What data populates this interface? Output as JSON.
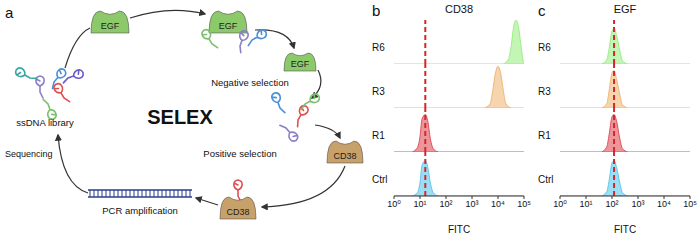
{
  "panel_a": {
    "label": "a",
    "title": "SELEX",
    "negative_target": "EGF",
    "positive_target": "CD38",
    "steps": {
      "library": "ssDNA library",
      "negative": "Negative selection",
      "positive": "Positive selection",
      "pcr": "PCR amplification",
      "sequencing": "Sequencing"
    }
  },
  "chart_data": [
    {
      "label": "b",
      "type": "area",
      "title": "CD38",
      "x_label": "FITC",
      "log": "x",
      "xlim": [
        1,
        100000
      ],
      "xticks": [
        {
          "value": 1,
          "label": "10⁰"
        },
        {
          "value": 10,
          "label": "10¹"
        },
        {
          "value": 100,
          "label": "10²"
        },
        {
          "value": 1000,
          "label": "10³"
        },
        {
          "value": 10000,
          "label": "10⁴"
        },
        {
          "value": 100000,
          "label": "10⁵"
        }
      ],
      "ylim": [
        0,
        1
      ],
      "tick_labels": "x",
      "reference_line": 16,
      "series": [
        {
          "name": "R6",
          "color": "#9bee84",
          "x": [
            16000,
            25000,
            32000,
            40000,
            50000,
            63000,
            79000,
            90000,
            100000
          ],
          "values": [
            0,
            0.1,
            0.4,
            0.85,
            1,
            0.8,
            0.35,
            0.12,
            0.02
          ]
        },
        {
          "name": "R3",
          "color": "#f0b878",
          "x": [
            3000,
            5000,
            6300,
            8000,
            10000,
            12600,
            16000,
            20000,
            32000
          ],
          "values": [
            0,
            0.1,
            0.4,
            0.8,
            0.95,
            0.8,
            0.4,
            0.1,
            0
          ]
        },
        {
          "name": "R1",
          "color": "#e0505a",
          "x": [
            5,
            8,
            10,
            12,
            16,
            20,
            25,
            32,
            50
          ],
          "values": [
            0,
            0.1,
            0.35,
            0.75,
            0.85,
            0.7,
            0.3,
            0.08,
            0
          ]
        },
        {
          "name": "Ctrl",
          "color": "#5ec8ef",
          "x": [
            5,
            8,
            10,
            12,
            16,
            20,
            25,
            32,
            50
          ],
          "values": [
            0,
            0.08,
            0.3,
            0.7,
            0.8,
            0.65,
            0.3,
            0.08,
            0
          ]
        }
      ]
    },
    {
      "label": "c",
      "type": "area",
      "title": "EGF",
      "x_label": "FITC",
      "log": "x",
      "xlim": [
        1,
        100000
      ],
      "xticks": [
        {
          "value": 1,
          "label": "10⁰"
        },
        {
          "value": 10,
          "label": "10¹"
        },
        {
          "value": 100,
          "label": "10²"
        },
        {
          "value": 1000,
          "label": "10³"
        },
        {
          "value": 10000,
          "label": "10⁴"
        },
        {
          "value": 100000,
          "label": "10⁵"
        }
      ],
      "ylim": [
        0,
        1
      ],
      "tick_labels": "x",
      "reference_line": 120,
      "series": [
        {
          "name": "R6",
          "color": "#9bee84",
          "x": [
            40,
            63,
            80,
            100,
            120,
            150,
            200,
            250,
            400
          ],
          "values": [
            0,
            0.1,
            0.4,
            0.75,
            0.8,
            0.65,
            0.3,
            0.08,
            0
          ]
        },
        {
          "name": "R3",
          "color": "#f0b878",
          "x": [
            40,
            63,
            80,
            100,
            120,
            150,
            200,
            250,
            400
          ],
          "values": [
            0,
            0.1,
            0.45,
            0.8,
            0.85,
            0.65,
            0.3,
            0.08,
            0
          ]
        },
        {
          "name": "R1",
          "color": "#e0505a",
          "x": [
            40,
            63,
            80,
            100,
            120,
            150,
            200,
            250,
            400
          ],
          "values": [
            0,
            0.12,
            0.45,
            0.8,
            0.85,
            0.7,
            0.3,
            0.08,
            0
          ]
        },
        {
          "name": "Ctrl",
          "color": "#5ec8ef",
          "x": [
            40,
            63,
            80,
            100,
            120,
            150,
            200,
            250,
            400
          ],
          "values": [
            0,
            0.1,
            0.4,
            0.75,
            0.8,
            0.65,
            0.3,
            0.08,
            0
          ]
        }
      ]
    }
  ]
}
